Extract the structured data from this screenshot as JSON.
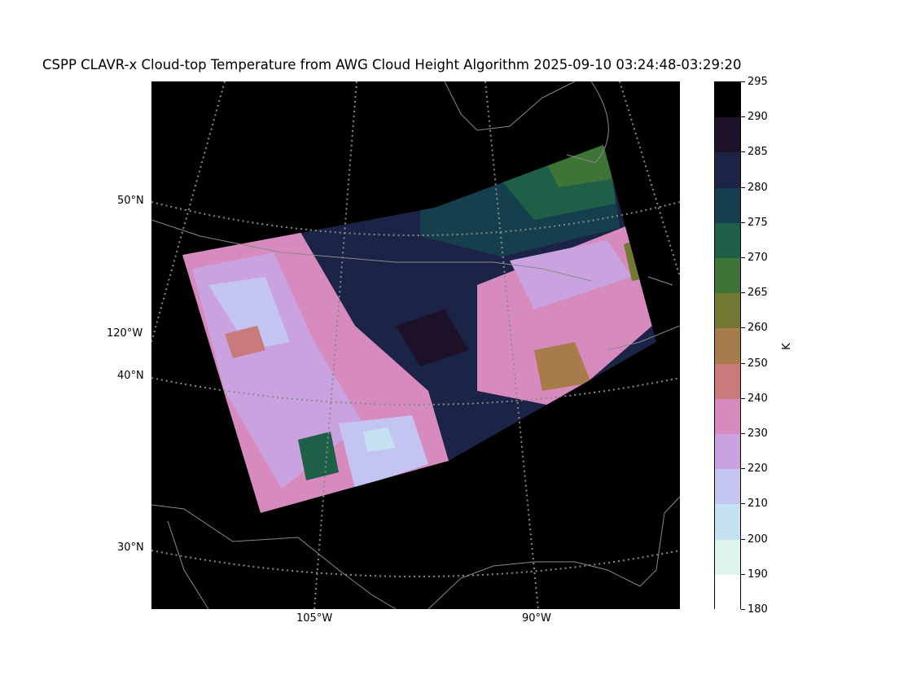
{
  "title": "CSPP CLAVR-x Cloud-top Temperature from AWG Cloud Height Algorithm 2025-09-10 03:24:48-03:29:20",
  "map": {
    "lat_labels": [
      {
        "text": "50°N",
        "value": 50
      },
      {
        "text": "120°W",
        "value": -120
      },
      {
        "text": "40°N",
        "value": 40
      },
      {
        "text": "30°N",
        "value": 30
      }
    ],
    "lon_labels": [
      {
        "text": "105°W",
        "value": -105
      },
      {
        "text": "90°W",
        "value": -90
      }
    ]
  },
  "colorbar": {
    "unit": "K",
    "ticks": [
      "295",
      "290",
      "285",
      "280",
      "275",
      "270",
      "265",
      "260",
      "250",
      "240",
      "230",
      "220",
      "210",
      "200",
      "190",
      "180"
    ],
    "colors": [
      "#000000",
      "#1c1128",
      "#1b2447",
      "#163f4e",
      "#1e6047",
      "#3e7436",
      "#717a30",
      "#a87b4b",
      "#c87a7d",
      "#d68abd",
      "#cba2e0",
      "#c3c4f2",
      "#c4e2f1",
      "#dff4ee",
      "#ffffff"
    ]
  },
  "colors": {
    "background": "#000000",
    "grid": "#8a8a8a",
    "coast": "#8a8a8a"
  }
}
